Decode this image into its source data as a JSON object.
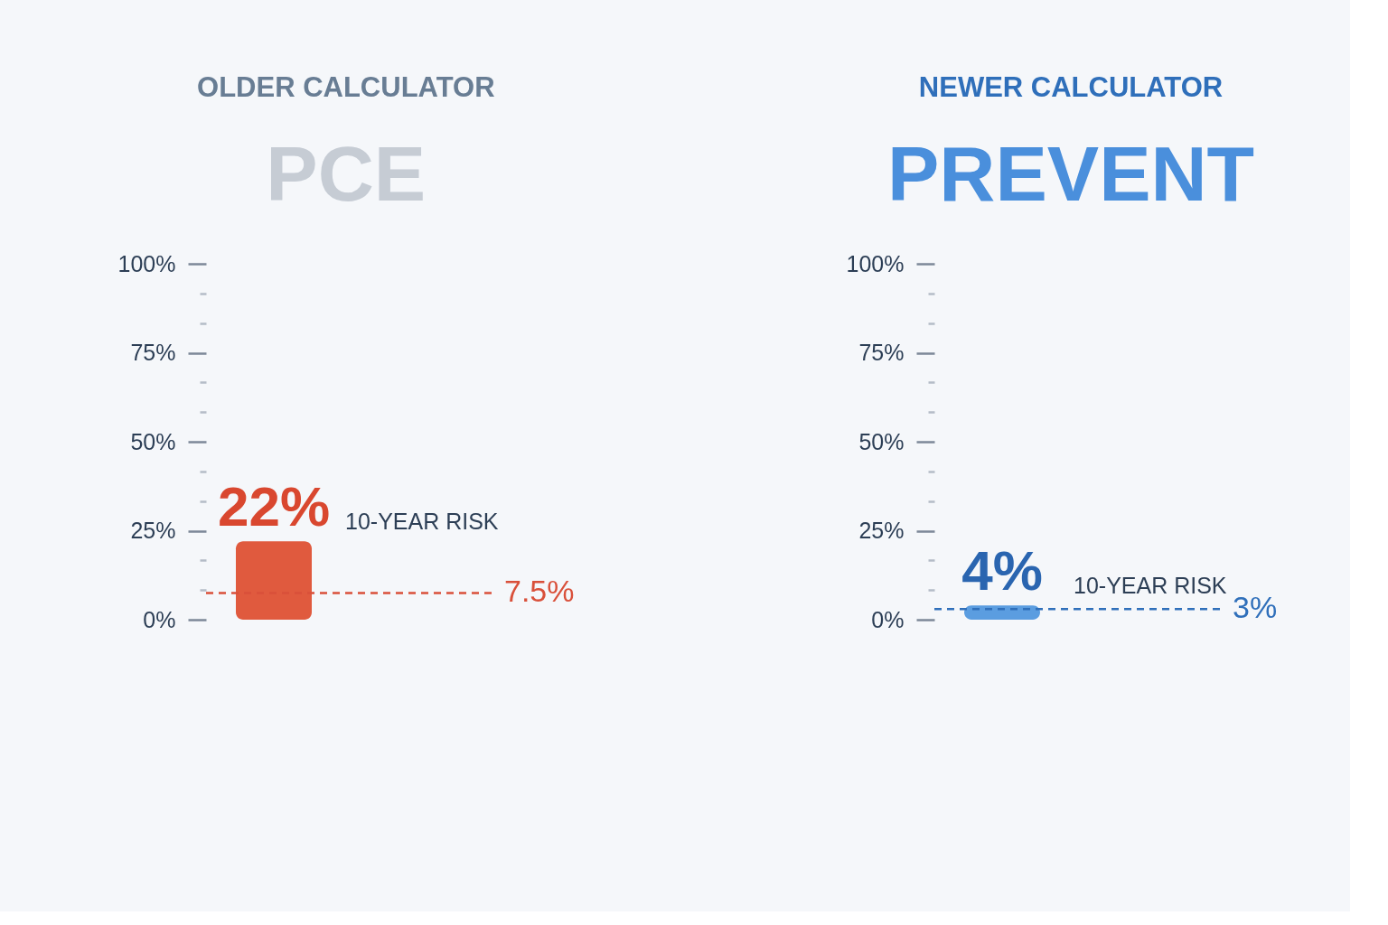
{
  "chart_data": [
    {
      "type": "bar",
      "title": "OLDER CALCULATOR",
      "subtitle": "PCE",
      "categories": [
        null
      ],
      "values": [
        22
      ],
      "color": "#e05a3e",
      "value_labels": [
        "22%"
      ],
      "annotations": [
        "10-YEAR RISK"
      ],
      "ylim": [
        0,
        100
      ],
      "yticks": [
        {
          "value": 0,
          "label": "0%"
        },
        {
          "value": 8.33,
          "label": null
        },
        {
          "value": 16.67,
          "label": null
        },
        {
          "value": 25,
          "label": "25%"
        },
        {
          "value": 33.33,
          "label": null
        },
        {
          "value": 41.67,
          "label": null
        },
        {
          "value": 50,
          "label": "50%"
        },
        {
          "value": 58.33,
          "label": null
        },
        {
          "value": 66.67,
          "label": null
        },
        {
          "value": 75,
          "label": "75%"
        },
        {
          "value": 83.33,
          "label": null
        },
        {
          "value": 91.67,
          "label": null
        },
        {
          "value": 100,
          "label": "100%"
        }
      ],
      "tick_labels": "y",
      "ref_lines": [
        {
          "axis": "y",
          "value": 7.5,
          "label": "7.5%",
          "color": "#d9503a",
          "line_style": "dashed"
        }
      ]
    },
    {
      "type": "bar",
      "title": "NEWER CALCULATOR",
      "subtitle": "PREVENT",
      "categories": [
        null
      ],
      "values": [
        4
      ],
      "color": "#5b9de0",
      "value_labels": [
        "4%"
      ],
      "annotations": [
        "10-YEAR RISK"
      ],
      "ylim": [
        0,
        100
      ],
      "yticks": [
        {
          "value": 0,
          "label": "0%"
        },
        {
          "value": 8.33,
          "label": null
        },
        {
          "value": 16.67,
          "label": null
        },
        {
          "value": 25,
          "label": "25%"
        },
        {
          "value": 33.33,
          "label": null
        },
        {
          "value": 41.67,
          "label": null
        },
        {
          "value": 50,
          "label": "50%"
        },
        {
          "value": 58.33,
          "label": null
        },
        {
          "value": 66.67,
          "label": null
        },
        {
          "value": 75,
          "label": "75%"
        },
        {
          "value": 83.33,
          "label": null
        },
        {
          "value": 91.67,
          "label": null
        },
        {
          "value": 100,
          "label": "100%"
        }
      ],
      "tick_labels": "y",
      "ref_lines": [
        {
          "axis": "y",
          "value": 3,
          "label": "3%",
          "color": "#2f6fba",
          "line_style": "dashed"
        }
      ]
    }
  ]
}
